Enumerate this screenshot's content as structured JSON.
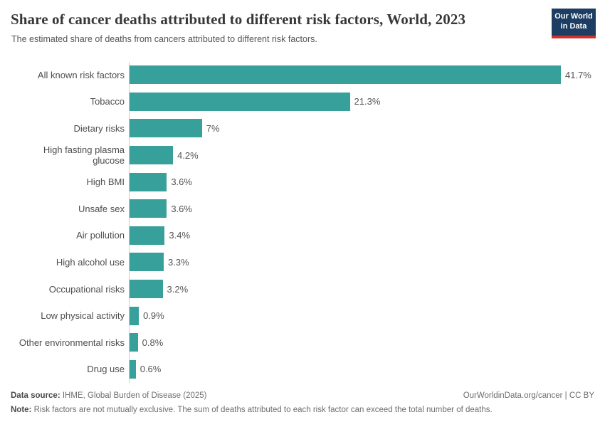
{
  "header": {
    "title": "Share of cancer deaths attributed to different risk factors, World, 2023",
    "subtitle": "The estimated share of deaths from cancers attributed to different risk factors.",
    "logo": {
      "line1": "Our World",
      "line2": "in Data"
    }
  },
  "chart_data": {
    "type": "bar",
    "orientation": "horizontal",
    "title": "Share of cancer deaths attributed to different risk factors, World, 2023",
    "xlabel": "",
    "ylabel": "",
    "grid": false,
    "legend": "none",
    "xlim": [
      0,
      41.7
    ],
    "categories": [
      "All known risk factors",
      "Tobacco",
      "Dietary risks",
      "High fasting plasma glucose",
      "High BMI",
      "Unsafe sex",
      "Air pollution",
      "High alcohol use",
      "Occupational risks",
      "Low physical activity",
      "Other environmental risks",
      "Drug use"
    ],
    "values": [
      41.7,
      21.3,
      7,
      4.2,
      3.6,
      3.6,
      3.4,
      3.3,
      3.2,
      0.9,
      0.8,
      0.6
    ],
    "value_labels": [
      "41.7%",
      "21.3%",
      "7%",
      "4.2%",
      "3.6%",
      "3.6%",
      "3.4%",
      "3.3%",
      "3.2%",
      "0.9%",
      "0.8%",
      "0.6%"
    ]
  },
  "colors": {
    "bar": "#38a09a",
    "axis_line": "#cccccc",
    "logo_bg": "#1d3d63",
    "logo_accent": "#cf322b"
  },
  "footer": {
    "data_source_label": "Data source:",
    "data_source_text": " IHME, Global Burden of Disease (2025)",
    "credit": "OurWorldinData.org/cancer | CC BY",
    "note_label": "Note:",
    "note_text": " Risk factors are not mutually exclusive. The sum of deaths attributed to each risk factor can exceed the total number of deaths."
  }
}
